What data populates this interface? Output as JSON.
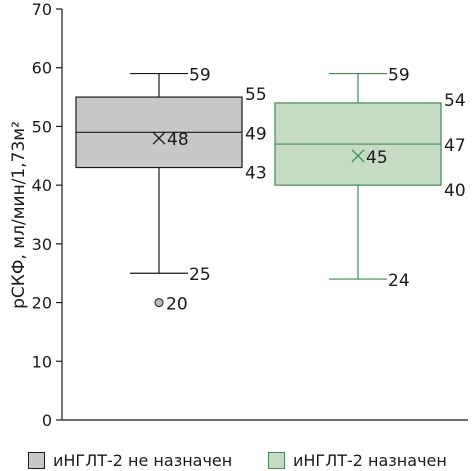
{
  "chart_data": {
    "type": "box",
    "ylabel": "рСКФ, мл/мин/1,73м²",
    "ylim": [
      0,
      70
    ],
    "yticks": [
      0,
      10,
      20,
      30,
      40,
      50,
      60,
      70
    ],
    "grid": false,
    "legend_position": "bottom",
    "series": [
      {
        "name": "иНГЛТ-2 не назначен",
        "fill": "#c8c8c8",
        "stroke": "#1a1a1a",
        "whisker_low": 25,
        "q1": 43,
        "median": 49,
        "q3": 55,
        "whisker_high": 59,
        "mean": 48,
        "outliers": [
          20
        ],
        "labels": {
          "whisker_high": "59",
          "q3": "55",
          "median": "49",
          "q1": "43",
          "whisker_low": "25",
          "mean": "48",
          "outlier": "20"
        }
      },
      {
        "name": "иНГЛТ-2 назначен",
        "fill": "#c5dcc2",
        "stroke": "#3f8a5a",
        "whisker_low": 24,
        "q1": 40,
        "median": 47,
        "q3": 54,
        "whisker_high": 59,
        "mean": 45,
        "outliers": [],
        "labels": {
          "whisker_high": "59",
          "q3": "54",
          "median": "47",
          "q1": "40",
          "whisker_low": "24",
          "mean": "45"
        }
      }
    ]
  }
}
